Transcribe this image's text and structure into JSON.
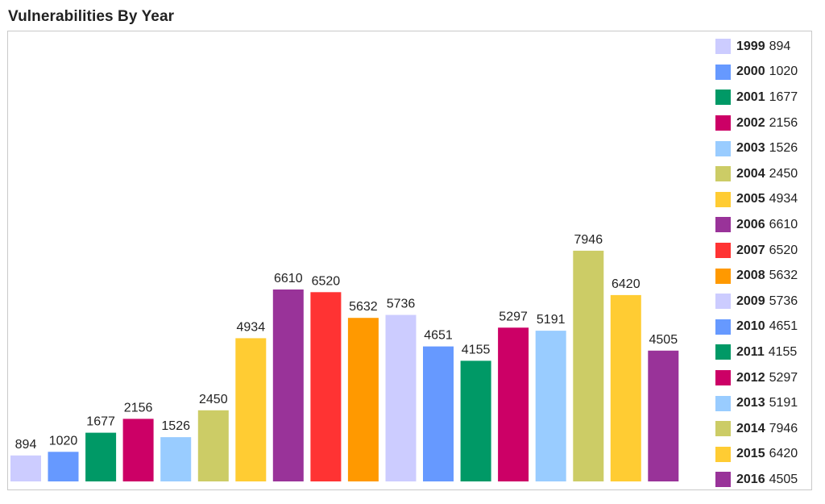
{
  "title": "Vulnerabilities By Year",
  "chart_data": {
    "type": "bar",
    "title": "Vulnerabilities By Year",
    "xlabel": "",
    "ylabel": "",
    "categories": [
      "1999",
      "2000",
      "2001",
      "2002",
      "2003",
      "2004",
      "2005",
      "2006",
      "2007",
      "2008",
      "2009",
      "2010",
      "2011",
      "2012",
      "2013",
      "2014",
      "2015",
      "2016"
    ],
    "values": [
      894,
      1020,
      1677,
      2156,
      1526,
      2450,
      4934,
      6610,
      6520,
      5632,
      5736,
      4651,
      4155,
      5297,
      5191,
      7946,
      6420,
      4505
    ],
    "colors": [
      "#ccccff",
      "#6699ff",
      "#009966",
      "#cc0066",
      "#99ccff",
      "#cccc66",
      "#ffcc33",
      "#993399",
      "#ff3333",
      "#ff9900",
      "#ccccff",
      "#6699ff",
      "#009966",
      "#cc0066",
      "#99ccff",
      "#cccc66",
      "#ffcc33",
      "#993399"
    ],
    "ylim": [
      0,
      10000
    ],
    "data_labels": true,
    "grid": false,
    "legend": "right"
  }
}
